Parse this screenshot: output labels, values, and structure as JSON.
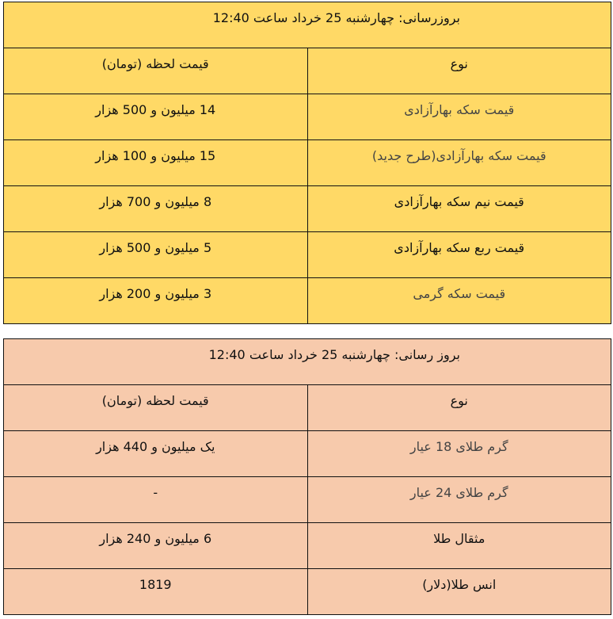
{
  "coin_table": {
    "updated": "بروزرسانی: چهارشنبه 25  خرداد ساعت 12:40",
    "headers": {
      "type": "نوع",
      "price": "قیمت لحظه (تومان)"
    },
    "rows": [
      {
        "name": "قیمت سکه بهارآزادی",
        "price": "14  میلیون و 500  هزار"
      },
      {
        "name": "قیمت سکه بهارآزادی(طرح جدید)",
        "price": "15  میلیون و 100 هزار"
      },
      {
        "name": "قیمت نیم سکه بهارآزادی",
        "price": "8 میلیون و 700  هزار"
      },
      {
        "name": "قیمت ربع سکه بهارآزادی",
        "price": "5  میلیون و 500  هزار"
      },
      {
        "name": "قیمت سکه گرمی",
        "price": "3 میلیون و 200 هزار"
      }
    ],
    "bg_color": "#FFD966"
  },
  "gold_table": {
    "updated": "بروز رسانی: چهارشنبه 25  خرداد ساعت 12:40",
    "headers": {
      "type": "نوع",
      "price": "قیمت لحظه (تومان)"
    },
    "rows": [
      {
        "name": "گرم طلای 18 عیار",
        "price": "یک میلیون و 440  هزار"
      },
      {
        "name": "گرم طلای 24 عیار",
        "price": "-"
      },
      {
        "name": "مثقال طلا",
        "price": "6  میلیون و 240   هزار"
      },
      {
        "name": "انس طلا(دلار)",
        "price": "1819"
      }
    ],
    "bg_color": "#F7CAAC"
  }
}
